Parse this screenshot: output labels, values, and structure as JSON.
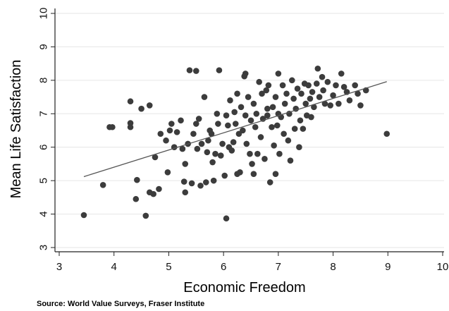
{
  "chart_data": {
    "type": "scatter",
    "title": "",
    "xlabel": "Economic Freedom",
    "ylabel": "Mean Life Satisfaction",
    "xlim": [
      3,
      10
    ],
    "ylim": [
      3,
      10
    ],
    "x_ticks": [
      3,
      4,
      5,
      6,
      7,
      8,
      9,
      10
    ],
    "y_ticks": [
      3,
      4,
      5,
      6,
      7,
      8,
      9,
      10
    ],
    "grid": "horizontal",
    "legend": "none",
    "point_color": "#3c3c3c",
    "line_color": "#555555",
    "trend_line": {
      "x": [
        3.45,
        8.98
      ],
      "y": [
        5.12,
        7.96
      ]
    },
    "points": [
      {
        "x": 3.45,
        "y": 3.97
      },
      {
        "x": 3.8,
        "y": 4.87
      },
      {
        "x": 3.92,
        "y": 6.6
      },
      {
        "x": 3.97,
        "y": 6.6
      },
      {
        "x": 4.3,
        "y": 7.37
      },
      {
        "x": 4.3,
        "y": 6.72
      },
      {
        "x": 4.3,
        "y": 6.6
      },
      {
        "x": 4.4,
        "y": 4.45
      },
      {
        "x": 4.42,
        "y": 5.02
      },
      {
        "x": 4.5,
        "y": 7.15
      },
      {
        "x": 4.58,
        "y": 3.95
      },
      {
        "x": 4.65,
        "y": 7.25
      },
      {
        "x": 4.65,
        "y": 4.65
      },
      {
        "x": 4.72,
        "y": 4.6
      },
      {
        "x": 4.75,
        "y": 5.7
      },
      {
        "x": 4.82,
        "y": 4.75
      },
      {
        "x": 4.85,
        "y": 6.4
      },
      {
        "x": 4.95,
        "y": 6.2
      },
      {
        "x": 4.98,
        "y": 5.25
      },
      {
        "x": 5.02,
        "y": 6.5
      },
      {
        "x": 5.05,
        "y": 6.7
      },
      {
        "x": 5.1,
        "y": 6.0
      },
      {
        "x": 5.15,
        "y": 6.45
      },
      {
        "x": 5.22,
        "y": 6.8
      },
      {
        "x": 5.25,
        "y": 5.95
      },
      {
        "x": 5.28,
        "y": 4.97
      },
      {
        "x": 5.3,
        "y": 4.65
      },
      {
        "x": 5.3,
        "y": 5.5
      },
      {
        "x": 5.35,
        "y": 6.1
      },
      {
        "x": 5.38,
        "y": 8.3
      },
      {
        "x": 5.42,
        "y": 4.92
      },
      {
        "x": 5.45,
        "y": 6.4
      },
      {
        "x": 5.5,
        "y": 8.28
      },
      {
        "x": 5.5,
        "y": 6.7
      },
      {
        "x": 5.52,
        "y": 5.95
      },
      {
        "x": 5.55,
        "y": 6.85
      },
      {
        "x": 5.58,
        "y": 4.85
      },
      {
        "x": 5.6,
        "y": 6.1
      },
      {
        "x": 5.65,
        "y": 7.5
      },
      {
        "x": 5.68,
        "y": 4.95
      },
      {
        "x": 5.7,
        "y": 5.85
      },
      {
        "x": 5.72,
        "y": 6.2
      },
      {
        "x": 5.75,
        "y": 6.5
      },
      {
        "x": 5.78,
        "y": 6.4
      },
      {
        "x": 5.8,
        "y": 5.55
      },
      {
        "x": 5.82,
        "y": 5.0
      },
      {
        "x": 5.85,
        "y": 5.8
      },
      {
        "x": 5.88,
        "y": 7.0
      },
      {
        "x": 5.9,
        "y": 6.7
      },
      {
        "x": 5.92,
        "y": 8.3
      },
      {
        "x": 5.95,
        "y": 5.75
      },
      {
        "x": 5.98,
        "y": 6.1
      },
      {
        "x": 6.02,
        "y": 5.15
      },
      {
        "x": 6.05,
        "y": 6.95
      },
      {
        "x": 6.05,
        "y": 3.87
      },
      {
        "x": 6.08,
        "y": 6.65
      },
      {
        "x": 6.1,
        "y": 6.0
      },
      {
        "x": 6.12,
        "y": 7.4
      },
      {
        "x": 6.15,
        "y": 5.9
      },
      {
        "x": 6.18,
        "y": 6.15
      },
      {
        "x": 6.2,
        "y": 7.05
      },
      {
        "x": 6.22,
        "y": 6.7
      },
      {
        "x": 6.25,
        "y": 5.2
      },
      {
        "x": 6.25,
        "y": 7.6
      },
      {
        "x": 6.28,
        "y": 6.4
      },
      {
        "x": 6.3,
        "y": 5.25
      },
      {
        "x": 6.32,
        "y": 7.2
      },
      {
        "x": 6.35,
        "y": 6.5
      },
      {
        "x": 6.38,
        "y": 8.12
      },
      {
        "x": 6.4,
        "y": 8.2
      },
      {
        "x": 6.4,
        "y": 6.95
      },
      {
        "x": 6.42,
        "y": 6.1
      },
      {
        "x": 6.45,
        "y": 7.5
      },
      {
        "x": 6.48,
        "y": 5.8
      },
      {
        "x": 6.5,
        "y": 6.8
      },
      {
        "x": 6.52,
        "y": 5.5
      },
      {
        "x": 6.55,
        "y": 7.3
      },
      {
        "x": 6.55,
        "y": 5.2
      },
      {
        "x": 6.58,
        "y": 6.6
      },
      {
        "x": 6.6,
        "y": 7.0
      },
      {
        "x": 6.62,
        "y": 5.8
      },
      {
        "x": 6.65,
        "y": 7.95
      },
      {
        "x": 6.68,
        "y": 6.3
      },
      {
        "x": 6.7,
        "y": 7.6
      },
      {
        "x": 6.72,
        "y": 6.85
      },
      {
        "x": 6.75,
        "y": 5.65
      },
      {
        "x": 6.78,
        "y": 7.7
      },
      {
        "x": 6.8,
        "y": 7.15
      },
      {
        "x": 6.8,
        "y": 6.95
      },
      {
        "x": 6.82,
        "y": 7.85
      },
      {
        "x": 6.85,
        "y": 4.95
      },
      {
        "x": 6.88,
        "y": 6.6
      },
      {
        "x": 6.9,
        "y": 7.2
      },
      {
        "x": 6.92,
        "y": 6.05
      },
      {
        "x": 6.95,
        "y": 7.5
      },
      {
        "x": 6.95,
        "y": 5.2
      },
      {
        "x": 6.98,
        "y": 6.65
      },
      {
        "x": 7.0,
        "y": 8.2
      },
      {
        "x": 7.0,
        "y": 7.0
      },
      {
        "x": 7.02,
        "y": 5.8
      },
      {
        "x": 7.05,
        "y": 6.9
      },
      {
        "x": 7.08,
        "y": 7.85
      },
      {
        "x": 7.1,
        "y": 6.4
      },
      {
        "x": 7.12,
        "y": 7.3
      },
      {
        "x": 7.15,
        "y": 7.6
      },
      {
        "x": 7.18,
        "y": 6.2
      },
      {
        "x": 7.2,
        "y": 7.0
      },
      {
        "x": 7.22,
        "y": 5.6
      },
      {
        "x": 7.25,
        "y": 8.0
      },
      {
        "x": 7.28,
        "y": 7.45
      },
      {
        "x": 7.3,
        "y": 6.55
      },
      {
        "x": 7.32,
        "y": 7.15
      },
      {
        "x": 7.35,
        "y": 7.75
      },
      {
        "x": 7.38,
        "y": 6.0
      },
      {
        "x": 7.4,
        "y": 6.8
      },
      {
        "x": 7.42,
        "y": 7.6
      },
      {
        "x": 7.45,
        "y": 6.55
      },
      {
        "x": 7.48,
        "y": 7.9
      },
      {
        "x": 7.5,
        "y": 7.3
      },
      {
        "x": 7.52,
        "y": 6.95
      },
      {
        "x": 7.55,
        "y": 7.85
      },
      {
        "x": 7.58,
        "y": 7.45
      },
      {
        "x": 7.6,
        "y": 6.9
      },
      {
        "x": 7.62,
        "y": 7.65
      },
      {
        "x": 7.65,
        "y": 7.2
      },
      {
        "x": 7.7,
        "y": 7.9
      },
      {
        "x": 7.72,
        "y": 8.35
      },
      {
        "x": 7.75,
        "y": 7.5
      },
      {
        "x": 7.8,
        "y": 8.1
      },
      {
        "x": 7.82,
        "y": 7.7
      },
      {
        "x": 7.85,
        "y": 7.3
      },
      {
        "x": 7.9,
        "y": 7.95
      },
      {
        "x": 7.95,
        "y": 7.25
      },
      {
        "x": 8.0,
        "y": 7.55
      },
      {
        "x": 8.05,
        "y": 7.85
      },
      {
        "x": 8.1,
        "y": 7.3
      },
      {
        "x": 8.15,
        "y": 8.2
      },
      {
        "x": 8.2,
        "y": 7.8
      },
      {
        "x": 8.25,
        "y": 7.65
      },
      {
        "x": 8.3,
        "y": 7.4
      },
      {
        "x": 8.4,
        "y": 7.85
      },
      {
        "x": 8.45,
        "y": 7.6
      },
      {
        "x": 8.5,
        "y": 7.25
      },
      {
        "x": 8.6,
        "y": 7.7
      },
      {
        "x": 8.98,
        "y": 6.4
      }
    ]
  },
  "source_note": "Source: World Value Surveys, Fraser Institute"
}
